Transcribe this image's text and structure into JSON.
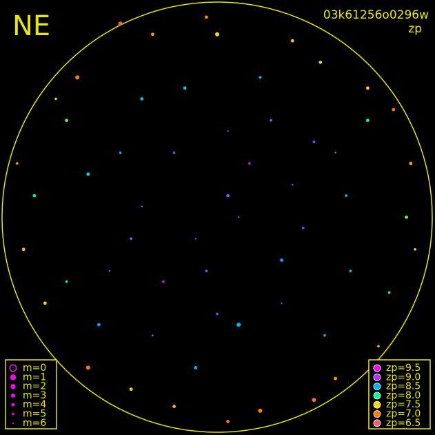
{
  "chart_data": {
    "type": "sky",
    "title": "NE",
    "image_id": "03k61256o0296w",
    "color_label": "zp",
    "xlim": [
      -1,
      1
    ],
    "ylim": [
      -1,
      1
    ],
    "x": [
      0.05,
      -0.2,
      0.3,
      -0.4,
      0.1,
      0.45,
      -0.35,
      0.6,
      -0.6,
      0.2,
      -0.1,
      0.5,
      -0.55,
      0.7,
      -0.7,
      0.0,
      -0.3,
      0.35,
      -0.85,
      0.88,
      0.8,
      -0.8,
      0.2,
      -0.2,
      0.55,
      -0.6,
      0.7,
      -0.65,
      0.15,
      -0.25,
      0.4,
      -0.05,
      0.25,
      -0.45,
      0.62,
      -0.15,
      0.0,
      -0.7,
      0.9,
      -0.9,
      0.45,
      -0.45,
      0.1,
      -0.35,
      0.35,
      0.05,
      -0.1,
      0.55,
      -0.5,
      0.3,
      -0.3,
      0.75,
      -0.75,
      0.05,
      -0.05,
      0.92,
      -0.93,
      0.48,
      -0.4,
      0.82
    ],
    "y": [
      0.1,
      0.3,
      -0.2,
      -0.1,
      -0.5,
      0.35,
      0.55,
      0.1,
      0.2,
      0.65,
      -0.7,
      -0.55,
      -0.5,
      0.45,
      -0.3,
      0.85,
      0.85,
      0.82,
      0.1,
      0.0,
      -0.35,
      -0.4,
      -0.9,
      -0.88,
      -0.75,
      -0.7,
      0.6,
      0.65,
      0.25,
      -0.3,
      -0.05,
      -0.25,
      0.45,
      0.3,
      -0.25,
      0.6,
      -0.45,
      0.45,
      0.25,
      -0.15,
      -0.85,
      0.9,
      0.0,
      0.05,
      0.15,
      0.4,
      -0.1,
      0.3,
      -0.25,
      -0.4,
      -0.55,
      -0.6,
      0.55,
      -0.95,
      0.93,
      -0.15,
      0.25,
      0.72,
      -0.8,
      0.5
    ],
    "zp": [
      8.8,
      8.9,
      8.6,
      8.7,
      8.5,
      8.8,
      8.4,
      8.3,
      8.2,
      8.3,
      8.5,
      8.4,
      8.6,
      8.0,
      8.0,
      7.5,
      7.2,
      7.4,
      8.0,
      7.8,
      8.0,
      7.5,
      7.0,
      7.3,
      7.2,
      7.0,
      7.5,
      7.0,
      9.3,
      9.2,
      8.9,
      8.8,
      8.7,
      8.5,
      8.3,
      8.4,
      8.9,
      7.8,
      7.2,
      7.4,
      6.8,
      6.6,
      9.1,
      8.8,
      8.7,
      8.8,
      9.0,
      8.4,
      8.6,
      8.7,
      8.5,
      7.3,
      7.6,
      7.0,
      7.1,
      7.5,
      7.3,
      7.6,
      7.5,
      7.0
    ],
    "m": [
      4,
      5,
      4,
      5,
      3,
      5,
      4,
      5,
      4,
      5,
      4,
      5,
      4,
      4,
      5,
      3,
      4,
      4,
      4,
      4,
      5,
      4,
      3,
      4,
      4,
      3,
      4,
      3,
      5,
      5,
      5,
      5,
      5,
      5,
      5,
      4,
      5,
      4,
      4,
      4,
      3,
      3,
      6,
      6,
      6,
      6,
      6,
      6,
      6,
      6,
      6,
      5,
      5,
      4,
      4,
      5,
      5,
      4,
      4,
      4
    ],
    "m_legend": [
      {
        "value": 0,
        "label": "m=0"
      },
      {
        "value": 1,
        "label": "m=1"
      },
      {
        "value": 2,
        "label": "m=2"
      },
      {
        "value": 3,
        "label": "m=3"
      },
      {
        "value": 4,
        "label": "m=4"
      },
      {
        "value": 5,
        "label": "m=5"
      },
      {
        "value": 6,
        "label": "m=6"
      }
    ],
    "zp_legend": [
      {
        "value": 9.5,
        "label": "zp=9.5",
        "color": "#ff00ff"
      },
      {
        "value": 9.0,
        "label": "zp=9.0",
        "color": "#b030ff"
      },
      {
        "value": 8.5,
        "label": "zp=8.5",
        "color": "#00b4ff"
      },
      {
        "value": 8.0,
        "label": "zp=8.0",
        "color": "#00ff9c"
      },
      {
        "value": 7.5,
        "label": "zp=7.5",
        "color": "#ffd800"
      },
      {
        "value": 7.0,
        "label": "zp=7.0",
        "color": "#ff7a00"
      },
      {
        "value": 6.5,
        "label": "zp=6.5",
        "color": "#ff5a6e"
      }
    ]
  }
}
